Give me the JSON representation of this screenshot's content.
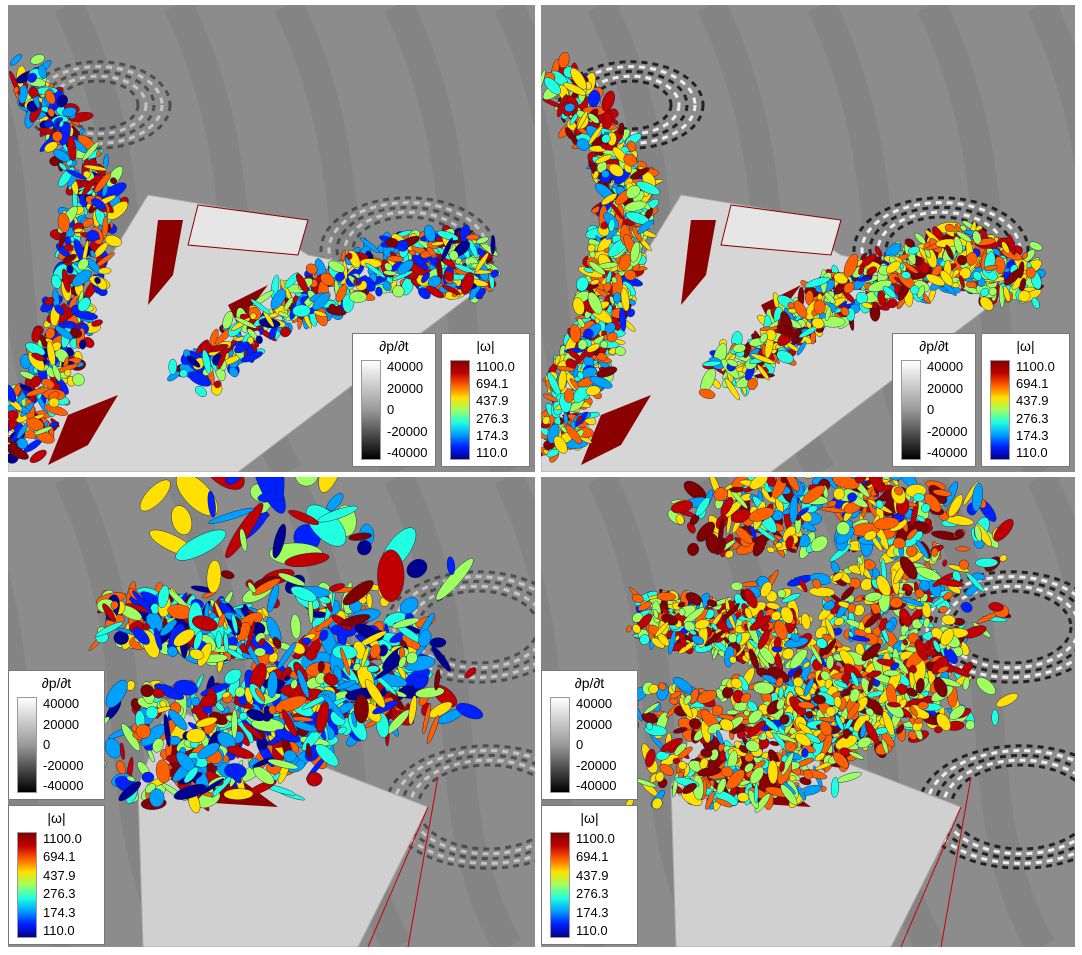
{
  "panels": [
    {
      "legends": [
        {
          "title": "∂p/∂t",
          "ticks": [
            "40000",
            "20000",
            "0",
            "-20000",
            "-40000"
          ]
        },
        {
          "title": "|ω|",
          "ticks": [
            "1100.0",
            "694.1",
            "437.9",
            "276.3",
            "174.3",
            "110.0"
          ]
        }
      ]
    },
    {
      "legends": [
        {
          "title": "∂p/∂t",
          "ticks": [
            "40000",
            "20000",
            "0",
            "-20000",
            "-40000"
          ]
        },
        {
          "title": "|ω|",
          "ticks": [
            "1100.0",
            "694.1",
            "437.9",
            "276.3",
            "174.3",
            "110.0"
          ]
        }
      ]
    },
    {
      "legends": [
        {
          "title": "∂p/∂t",
          "ticks": [
            "40000",
            "20000",
            "0",
            "-20000",
            "-40000"
          ]
        },
        {
          "title": "|ω|",
          "ticks": [
            "1100.0",
            "694.1",
            "437.9",
            "276.3",
            "174.3",
            "110.0"
          ]
        }
      ]
    },
    {
      "legends": [
        {
          "title": "∂p/∂t",
          "ticks": [
            "40000",
            "20000",
            "0",
            "-20000",
            "-40000"
          ]
        },
        {
          "title": "|ω|",
          "ticks": [
            "1100.0",
            "694.1",
            "437.9",
            "276.3",
            "174.3",
            "110.0"
          ]
        }
      ]
    }
  ]
}
